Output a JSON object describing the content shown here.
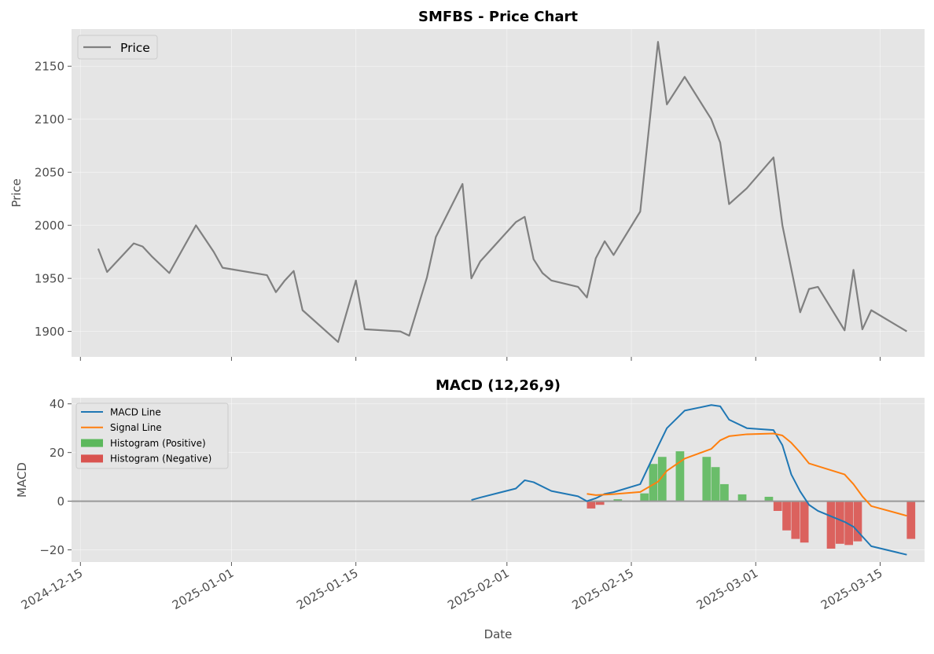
{
  "chart_data": [
    {
      "type": "line",
      "title": "SMFBS - Price Chart",
      "xlabel": "",
      "ylabel": "Price",
      "xlim": [
        "2024-12-14",
        "2025-03-20"
      ],
      "ylim": [
        1876,
        2185
      ],
      "y_ticks": [
        1900,
        1950,
        2000,
        2050,
        2100,
        2150
      ],
      "grid": true,
      "legend_placement": "top-left",
      "series": [
        {
          "name": "Price",
          "color": "#808080",
          "points": [
            [
              "2024-12-17",
              1978
            ],
            [
              "2024-12-18",
              1956
            ],
            [
              "2024-12-21",
              1983
            ],
            [
              "2024-12-22",
              1980
            ],
            [
              "2024-12-23",
              1971
            ],
            [
              "2024-12-25",
              1955
            ],
            [
              "2024-12-28",
              2000
            ],
            [
              "2024-12-30",
              1975
            ],
            [
              "2024-12-31",
              1960
            ],
            [
              "2025-01-05",
              1953
            ],
            [
              "2025-01-06",
              1937
            ],
            [
              "2025-01-07",
              1948
            ],
            [
              "2025-01-08",
              1957
            ],
            [
              "2025-01-09",
              1920
            ],
            [
              "2025-01-13",
              1890
            ],
            [
              "2025-01-15",
              1948
            ],
            [
              "2025-01-16",
              1902
            ],
            [
              "2025-01-20",
              1900
            ],
            [
              "2025-01-21",
              1896
            ],
            [
              "2025-01-23",
              1951
            ],
            [
              "2025-01-24",
              1989
            ],
            [
              "2025-01-27",
              2039
            ],
            [
              "2025-01-28",
              1950
            ],
            [
              "2025-01-29",
              1966
            ],
            [
              "2025-02-02",
              2003
            ],
            [
              "2025-02-03",
              2008
            ],
            [
              "2025-02-04",
              1968
            ],
            [
              "2025-02-05",
              1955
            ],
            [
              "2025-02-06",
              1948
            ],
            [
              "2025-02-09",
              1942
            ],
            [
              "2025-02-10",
              1932
            ],
            [
              "2025-02-11",
              1969
            ],
            [
              "2025-02-12",
              1985
            ],
            [
              "2025-02-13",
              1972
            ],
            [
              "2025-02-16",
              2013
            ],
            [
              "2025-02-18",
              2173
            ],
            [
              "2025-02-19",
              2114
            ],
            [
              "2025-02-21",
              2140
            ],
            [
              "2025-02-24",
              2100
            ],
            [
              "2025-02-25",
              2078
            ],
            [
              "2025-02-26",
              2020
            ],
            [
              "2025-02-28",
              2035
            ],
            [
              "2025-03-03",
              2064
            ],
            [
              "2025-03-04",
              2000
            ],
            [
              "2025-03-06",
              1918
            ],
            [
              "2025-03-07",
              1940
            ],
            [
              "2025-03-08",
              1942
            ],
            [
              "2025-03-11",
              1901
            ],
            [
              "2025-03-12",
              1958
            ],
            [
              "2025-03-13",
              1902
            ],
            [
              "2025-03-14",
              1920
            ],
            [
              "2025-03-18",
              1900
            ]
          ]
        }
      ]
    },
    {
      "type": "line",
      "title": "MACD (12,26,9)",
      "xlabel": "Date",
      "ylabel": "MACD",
      "xlim": [
        "2024-12-14",
        "2025-03-20"
      ],
      "ylim": [
        -25,
        42.5
      ],
      "y_ticks": [
        -20,
        0,
        20,
        40
      ],
      "x_ticks": [
        "2024-12-15",
        "2025-01-01",
        "2025-01-15",
        "2025-02-01",
        "2025-02-15",
        "2025-03-01",
        "2025-03-15"
      ],
      "grid": true,
      "zero_line": true,
      "legend_placement": "top-left",
      "series": [
        {
          "name": "MACD Line",
          "color": "#1f77b4",
          "points": [
            [
              "2025-01-28",
              0.5
            ],
            [
              "2025-01-29",
              1.5
            ],
            [
              "2025-02-02",
              5.2
            ],
            [
              "2025-02-03",
              8.6
            ],
            [
              "2025-02-04",
              7.8
            ],
            [
              "2025-02-06",
              4.2
            ],
            [
              "2025-02-09",
              2.0
            ],
            [
              "2025-02-10",
              0.0
            ],
            [
              "2025-02-11",
              1.2
            ],
            [
              "2025-02-12",
              3.0
            ],
            [
              "2025-02-13",
              3.7
            ],
            [
              "2025-02-16",
              7.0
            ],
            [
              "2025-02-18",
              22.5
            ],
            [
              "2025-02-19",
              30.0
            ],
            [
              "2025-02-21",
              37.2
            ],
            [
              "2025-02-24",
              39.5
            ],
            [
              "2025-02-25",
              39.0
            ],
            [
              "2025-02-26",
              33.5
            ],
            [
              "2025-02-28",
              30.0
            ],
            [
              "2025-03-03",
              29.2
            ],
            [
              "2025-03-04",
              23.0
            ],
            [
              "2025-03-05",
              11.0
            ],
            [
              "2025-03-06",
              4.0
            ],
            [
              "2025-03-07",
              -1.5
            ],
            [
              "2025-03-08",
              -4.0
            ],
            [
              "2025-03-11",
              -8.5
            ],
            [
              "2025-03-12",
              -10.5
            ],
            [
              "2025-03-13",
              -14.5
            ],
            [
              "2025-03-14",
              -18.5
            ],
            [
              "2025-03-18",
              -22.0
            ]
          ]
        },
        {
          "name": "Signal Line",
          "color": "#ff7f0e",
          "points": [
            [
              "2025-02-10",
              3.0
            ],
            [
              "2025-02-11",
              2.5
            ],
            [
              "2025-02-12",
              2.7
            ],
            [
              "2025-02-13",
              2.9
            ],
            [
              "2025-02-16",
              3.8
            ],
            [
              "2025-02-18",
              8.0
            ],
            [
              "2025-02-19",
              12.5
            ],
            [
              "2025-02-21",
              17.5
            ],
            [
              "2025-02-24",
              21.5
            ],
            [
              "2025-02-25",
              25.0
            ],
            [
              "2025-02-26",
              26.7
            ],
            [
              "2025-02-28",
              27.5
            ],
            [
              "2025-03-03",
              27.8
            ],
            [
              "2025-03-04",
              27.0
            ],
            [
              "2025-03-05",
              24.0
            ],
            [
              "2025-03-06",
              20.0
            ],
            [
              "2025-03-07",
              15.5
            ],
            [
              "2025-03-11",
              11.0
            ],
            [
              "2025-03-12",
              7.0
            ],
            [
              "2025-03-13",
              2.0
            ],
            [
              "2025-03-14",
              -2.0
            ],
            [
              "2025-03-18",
              -6.0
            ]
          ]
        }
      ],
      "histogram": {
        "positive": {
          "name": "Histogram (Positive)",
          "color": "#5cb85c"
        },
        "negative": {
          "name": "Histogram (Negative)",
          "color": "#d9534f"
        },
        "bars": [
          [
            "2025-02-10",
            -3.0
          ],
          [
            "2025-02-11",
            -1.5
          ],
          [
            "2025-02-12",
            0.3
          ],
          [
            "2025-02-13",
            0.8
          ],
          [
            "2025-02-16",
            3.2
          ],
          [
            "2025-02-17",
            15.3
          ],
          [
            "2025-02-18",
            18.2
          ],
          [
            "2025-02-20",
            20.5
          ],
          [
            "2025-02-23",
            18.2
          ],
          [
            "2025-02-24",
            14.0
          ],
          [
            "2025-02-25",
            7.0
          ],
          [
            "2025-02-27",
            2.8
          ],
          [
            "2025-03-02",
            1.8
          ],
          [
            "2025-03-03",
            -4.0
          ],
          [
            "2025-03-04",
            -12.0
          ],
          [
            "2025-03-05",
            -15.5
          ],
          [
            "2025-03-06",
            -17.0
          ],
          [
            "2025-03-09",
            -19.5
          ],
          [
            "2025-03-10",
            -17.5
          ],
          [
            "2025-03-11",
            -18.0
          ],
          [
            "2025-03-12",
            -16.5
          ],
          [
            "2025-03-18",
            -15.5
          ]
        ]
      }
    }
  ]
}
